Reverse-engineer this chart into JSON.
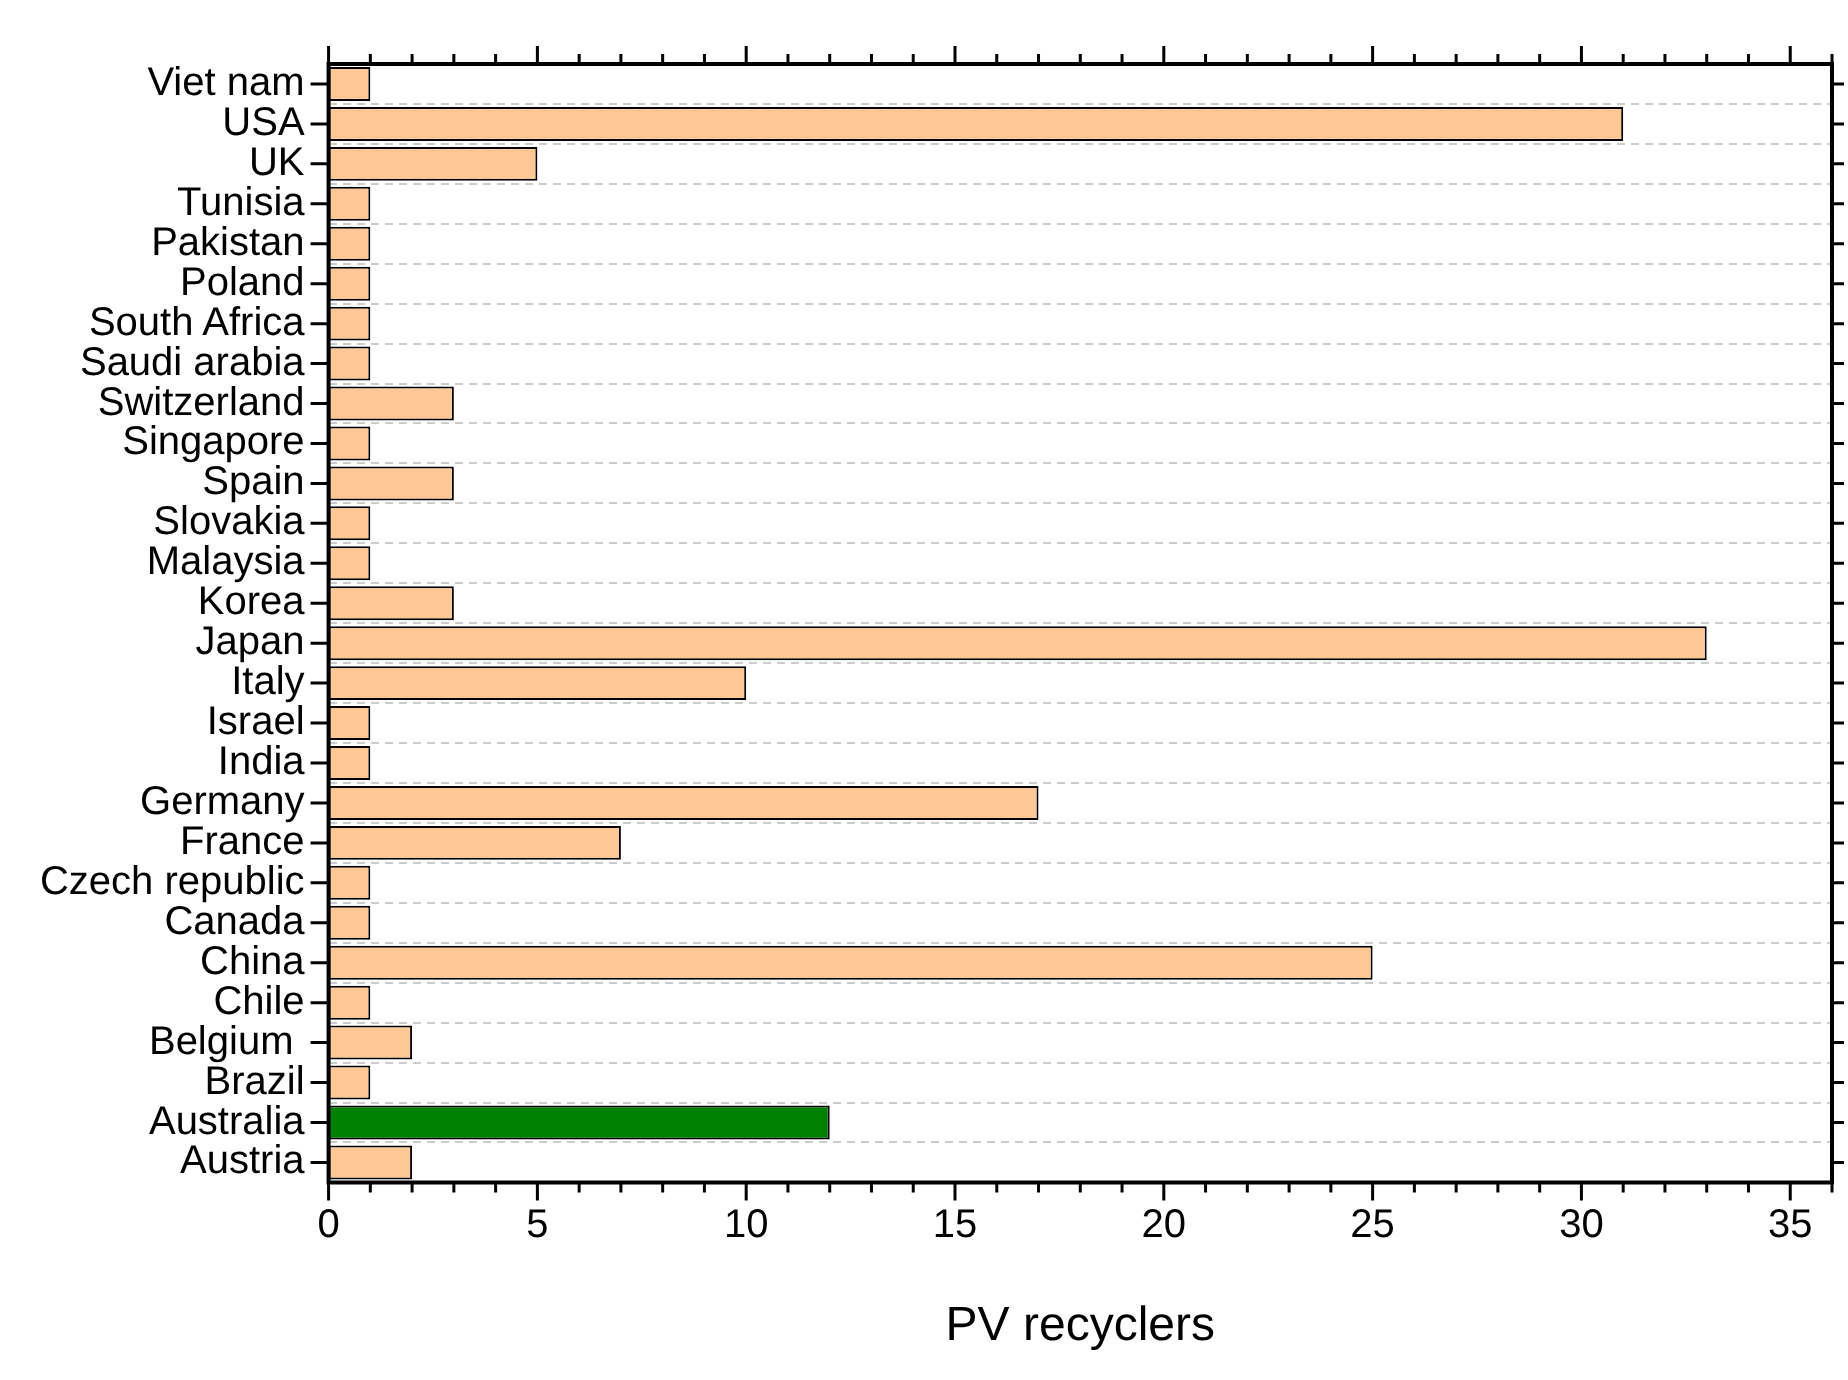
{
  "chart_data": {
    "type": "bar",
    "orientation": "horizontal",
    "xlabel": "PV recyclers",
    "categories": [
      "Viet nam",
      "USA",
      "UK",
      "Tunisia",
      "Pakistan",
      "Poland",
      "South Africa",
      "Saudi arabia",
      "Switzerland",
      "Singapore",
      "Spain",
      "Slovakia",
      "Malaysia",
      "Korea",
      "Japan",
      "Italy",
      "Israel",
      "India",
      "Germany",
      "France",
      "Czech republic",
      "Canada",
      "China",
      "Chile",
      "Belgium ",
      "Brazil",
      "Australia",
      "Austria"
    ],
    "values": [
      1,
      31,
      5,
      1,
      1,
      1,
      1,
      1,
      3,
      1,
      3,
      1,
      1,
      3,
      33,
      10,
      1,
      1,
      17,
      7,
      1,
      1,
      25,
      1,
      2,
      1,
      12,
      2
    ],
    "colors": [
      "#fdc896",
      "#fdc896",
      "#fdc896",
      "#fdc896",
      "#fdc896",
      "#fdc896",
      "#fdc896",
      "#fdc896",
      "#fdc896",
      "#fdc896",
      "#fdc896",
      "#fdc896",
      "#fdc896",
      "#fdc896",
      "#fdc896",
      "#fdc896",
      "#fdc896",
      "#fdc896",
      "#fdc896",
      "#fdc896",
      "#fdc896",
      "#fdc896",
      "#fdc896",
      "#fdc896",
      "#fdc896",
      "#fdc896",
      "#008000",
      "#fdc896"
    ],
    "xlim": [
      0,
      36
    ],
    "xticks": [
      0,
      5,
      10,
      15,
      20,
      25,
      30,
      35
    ],
    "grid": "y",
    "legend": false
  }
}
